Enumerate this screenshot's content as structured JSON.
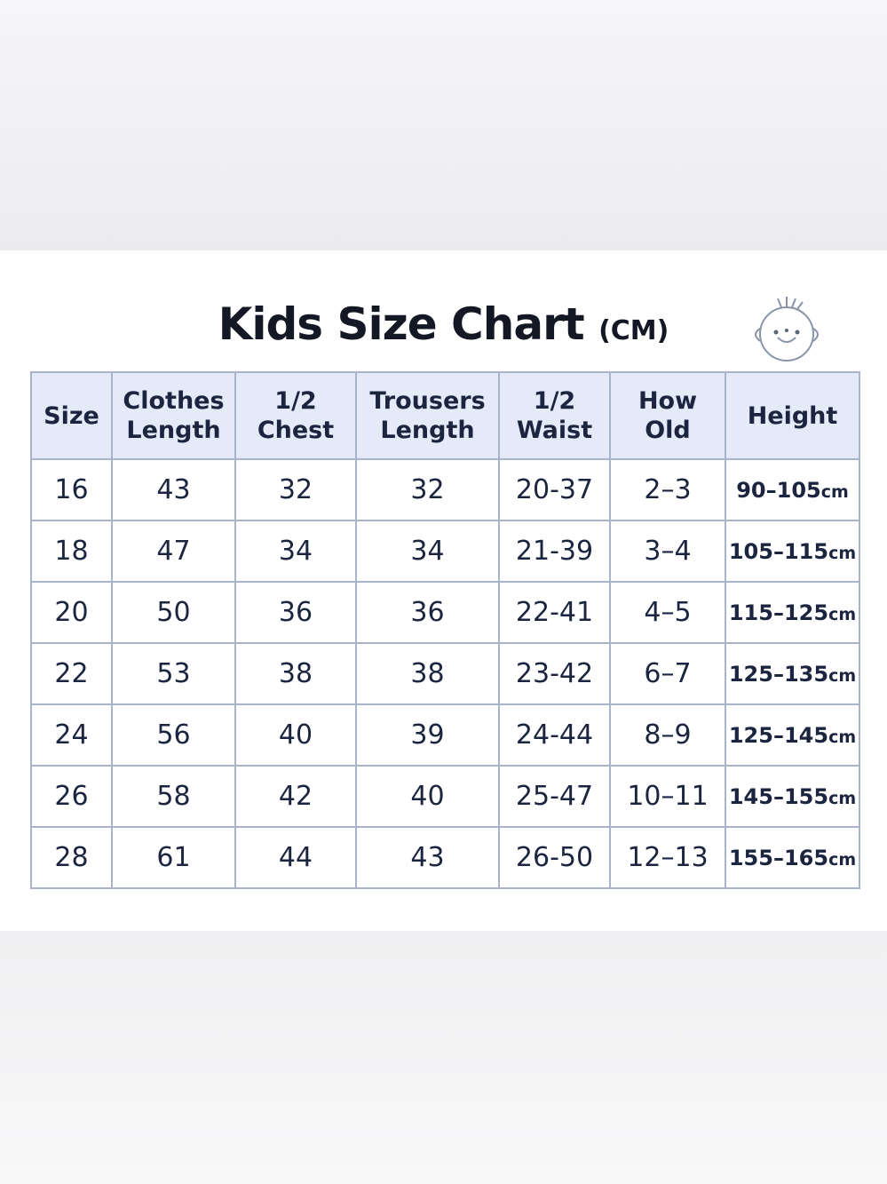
{
  "header": {
    "title": "Kids Size Chart",
    "unit": "(CM)"
  },
  "table": {
    "columns": [
      [
        "Size"
      ],
      [
        "Clothes",
        "Length"
      ],
      [
        "1/2",
        "Chest"
      ],
      [
        "Trousers",
        "Length"
      ],
      [
        "1/2",
        "Waist"
      ],
      [
        "How",
        "Old"
      ],
      [
        "Height"
      ]
    ],
    "rows": [
      [
        "16",
        "43",
        "32",
        "32",
        "20-37",
        "2–3",
        {
          "range": "90–105",
          "unit": "cm"
        }
      ],
      [
        "18",
        "47",
        "34",
        "34",
        "21-39",
        "3–4",
        {
          "range": "105–115",
          "unit": "cm"
        }
      ],
      [
        "20",
        "50",
        "36",
        "36",
        "22-41",
        "4–5",
        {
          "range": "115–125",
          "unit": "cm"
        }
      ],
      [
        "22",
        "53",
        "38",
        "38",
        "23-42",
        "6–7",
        {
          "range": "125–135",
          "unit": "cm"
        }
      ],
      [
        "24",
        "56",
        "40",
        "39",
        "24-44",
        "8–9",
        {
          "range": "125–145",
          "unit": "cm"
        }
      ],
      [
        "26",
        "58",
        "42",
        "40",
        "25-47",
        "10–11",
        {
          "range": "145–155",
          "unit": "cm"
        }
      ],
      [
        "28",
        "61",
        "44",
        "43",
        "26-50",
        "12–13",
        {
          "range": "155–165",
          "unit": "cm"
        }
      ]
    ]
  }
}
